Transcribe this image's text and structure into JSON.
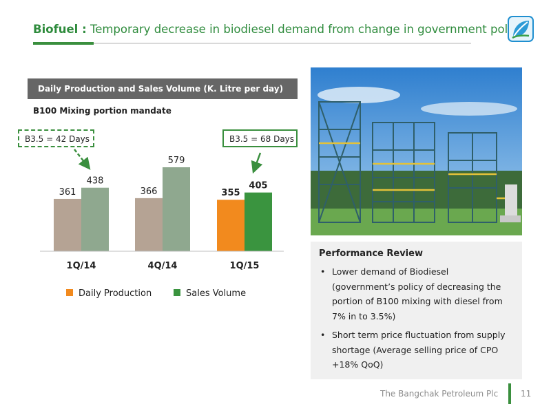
{
  "header": {
    "title_bold": "Biofuel :",
    "title_rest": "Temporary decrease in biodiesel demand from change in government policy"
  },
  "chart_header": "Daily  Production and Sales Volume (K. Litre per day)",
  "subtitle": "B100 Mixing portion mandate",
  "callouts": {
    "left": "B3.5 = 42 Days",
    "right": "B3.5 = 68 Days"
  },
  "chart_data": {
    "type": "bar",
    "categories": [
      "1Q/14",
      "4Q/14",
      "1Q/15"
    ],
    "series": [
      {
        "name": "Daily Production",
        "values": [
          361,
          366,
          355
        ]
      },
      {
        "name": "Sales Volume",
        "values": [
          438,
          579,
          405
        ]
      }
    ],
    "legend_position": "bottom",
    "grid": false
  },
  "colors": {
    "production_past": "#b5a394",
    "sales_past": "#8fa88f",
    "production_current": "#f28a1e",
    "sales_current": "#3a943f",
    "brand_green": "#3a8f3e"
  },
  "review": {
    "heading": "Performance Review",
    "bullets": [
      "Lower demand of Biodiesel (government’s policy of decreasing the portion of B100 mixing with diesel from 7% in to 3.5%)",
      "Short term price fluctuation from supply shortage (Average selling price of CPO +18% QoQ)"
    ]
  },
  "footer": {
    "company": "The Bangchak Petroleum Plc",
    "page": "11"
  },
  "icons": {
    "logo": "bangchak-leaf-logo-icon",
    "photo": "biodiesel-plant-photo"
  }
}
